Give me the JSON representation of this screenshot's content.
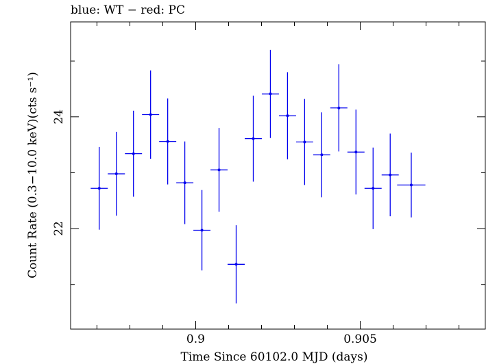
{
  "chart_data": {
    "type": "scatter",
    "title": "blue: WT − red: PC",
    "xlabel": "Time Since 60102.0 MJD (days)",
    "ylabel": "Count Rate (0.3−10.0 keV)(cts s⁻¹)",
    "xlim": [
      0.8962,
      0.9088
    ],
    "ylim": [
      20.2,
      25.7
    ],
    "x_ticks": [
      {
        "value": 0.9,
        "label": "0.9"
      },
      {
        "value": 0.905,
        "label": "0.905"
      }
    ],
    "y_ticks": [
      {
        "value": 22,
        "label": "22"
      },
      {
        "value": 24,
        "label": "24"
      }
    ],
    "x_minor_step": 0.001,
    "y_minor_step": 1,
    "grid": false,
    "series": [
      {
        "color": "#0000ee",
        "points": [
          {
            "x": 0.89707,
            "y": 22.72,
            "xerr": 0.00026,
            "yerr": 0.74
          },
          {
            "x": 0.89759,
            "y": 22.98,
            "xerr": 0.00026,
            "yerr": 0.75
          },
          {
            "x": 0.89811,
            "y": 23.34,
            "xerr": 0.00026,
            "yerr": 0.77
          },
          {
            "x": 0.89863,
            "y": 24.04,
            "xerr": 0.00026,
            "yerr": 0.79
          },
          {
            "x": 0.89915,
            "y": 23.56,
            "xerr": 0.00026,
            "yerr": 0.77
          },
          {
            "x": 0.89967,
            "y": 22.82,
            "xerr": 0.00026,
            "yerr": 0.74
          },
          {
            "x": 0.90019,
            "y": 21.97,
            "xerr": 0.00026,
            "yerr": 0.72
          },
          {
            "x": 0.90071,
            "y": 23.05,
            "xerr": 0.00026,
            "yerr": 0.75
          },
          {
            "x": 0.90123,
            "y": 21.36,
            "xerr": 0.00026,
            "yerr": 0.7
          },
          {
            "x": 0.90175,
            "y": 23.61,
            "xerr": 0.00026,
            "yerr": 0.77
          },
          {
            "x": 0.90227,
            "y": 24.41,
            "xerr": 0.00026,
            "yerr": 0.79
          },
          {
            "x": 0.90279,
            "y": 24.02,
            "xerr": 0.00026,
            "yerr": 0.78
          },
          {
            "x": 0.90331,
            "y": 23.55,
            "xerr": 0.00026,
            "yerr": 0.77
          },
          {
            "x": 0.90383,
            "y": 23.32,
            "xerr": 0.00026,
            "yerr": 0.76
          },
          {
            "x": 0.90435,
            "y": 24.16,
            "xerr": 0.00026,
            "yerr": 0.78
          },
          {
            "x": 0.90487,
            "y": 23.37,
            "xerr": 0.00026,
            "yerr": 0.76
          },
          {
            "x": 0.90539,
            "y": 22.72,
            "xerr": 0.00026,
            "yerr": 0.73
          },
          {
            "x": 0.90591,
            "y": 22.96,
            "xerr": 0.00026,
            "yerr": 0.74
          },
          {
            "x": 0.90655,
            "y": 22.78,
            "xerr": 0.00043,
            "yerr": 0.58
          }
        ]
      }
    ]
  }
}
